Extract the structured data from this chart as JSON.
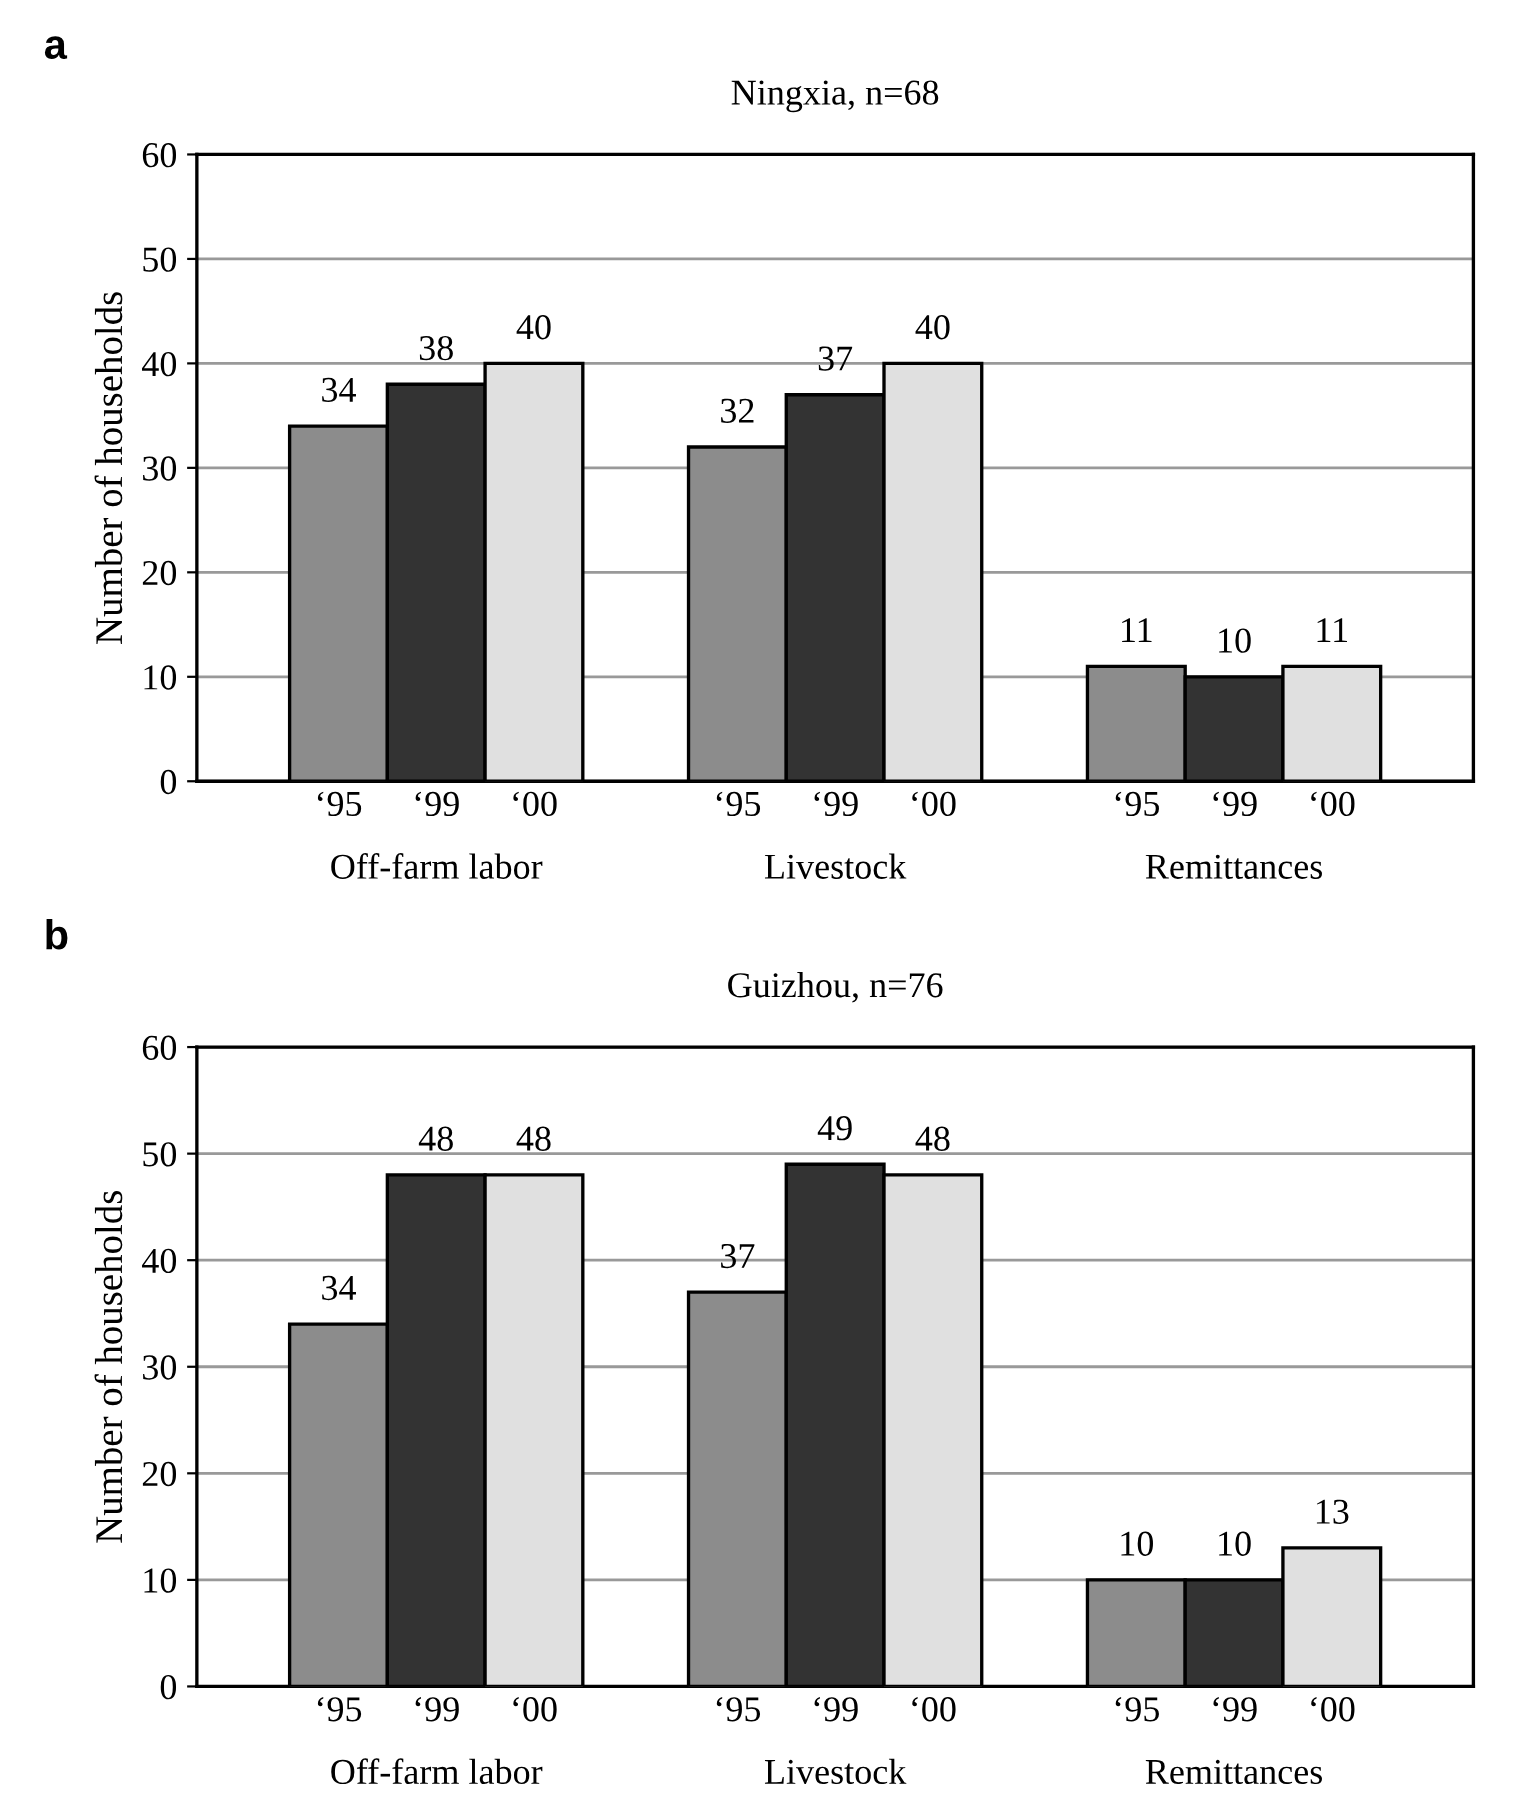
{
  "chart_data": [
    {
      "type": "bar",
      "title": "Ningxia, n=68",
      "ylabel": "Number of households",
      "annotations": [
        "a"
      ],
      "categories": [
        "Off-farm labor",
        "Livestock",
        "Remittances"
      ],
      "series": [
        {
          "name": "‘95",
          "color": "#8c8c8c",
          "values": [
            34,
            32,
            11
          ]
        },
        {
          "name": "‘99",
          "color": "#333333",
          "values": [
            38,
            37,
            10
          ]
        },
        {
          "name": "‘00",
          "color": "#e0e0e0",
          "values": [
            40,
            40,
            11
          ]
        }
      ],
      "ylim": [
        0,
        60
      ],
      "yticks": [
        0,
        10,
        20,
        30,
        40,
        50,
        60
      ],
      "grid": "y",
      "data_labels": true,
      "legend": false
    },
    {
      "type": "bar",
      "title": "Guizhou, n=76",
      "ylabel": "Number of households",
      "annotations": [
        "b"
      ],
      "categories": [
        "Off-farm labor",
        "Livestock",
        "Remittances"
      ],
      "series": [
        {
          "name": "‘95",
          "color": "#8c8c8c",
          "values": [
            34,
            37,
            10
          ]
        },
        {
          "name": "‘99",
          "color": "#333333",
          "values": [
            48,
            49,
            10
          ]
        },
        {
          "name": "‘00",
          "color": "#e0e0e0",
          "values": [
            48,
            48,
            13
          ]
        }
      ],
      "ylim": [
        0,
        60
      ],
      "yticks": [
        0,
        10,
        20,
        30,
        40,
        50,
        60
      ],
      "grid": "y",
      "data_labels": true,
      "legend": false
    }
  ]
}
